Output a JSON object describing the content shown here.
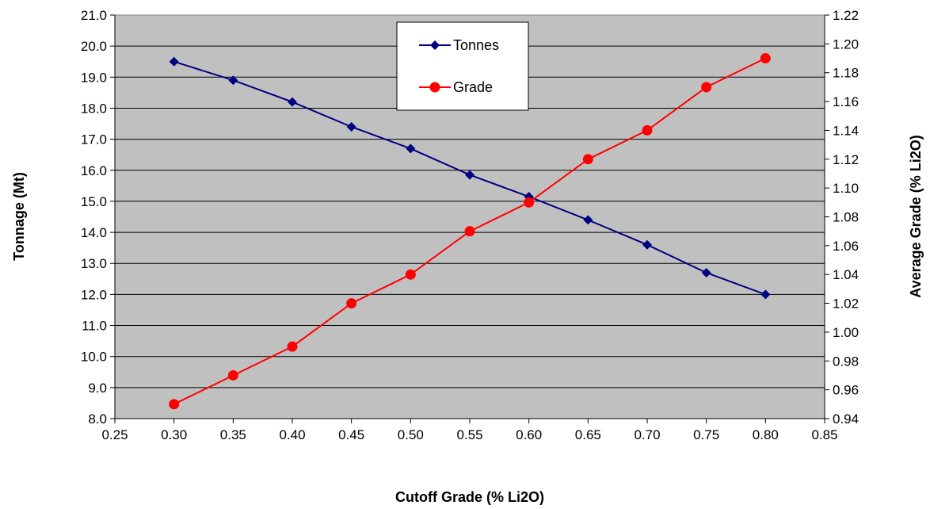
{
  "chart_data": {
    "type": "line",
    "title": "",
    "xlabel": "Cutoff Grade (% Li2O)",
    "ylabel": "Tonnage (Mt)",
    "y2label": "Average Grade (% Li2O)",
    "xlim": [
      0.25,
      0.85
    ],
    "ylim": [
      8.0,
      21.0
    ],
    "y2lim": [
      0.94,
      1.22
    ],
    "x_ticks": [
      "0.25",
      "0.30",
      "0.35",
      "0.40",
      "0.45",
      "0.50",
      "0.55",
      "0.60",
      "0.65",
      "0.70",
      "0.75",
      "0.80",
      "0.85"
    ],
    "y_ticks": [
      "8.0",
      "9.0",
      "10.0",
      "11.0",
      "12.0",
      "13.0",
      "14.0",
      "15.0",
      "16.0",
      "17.0",
      "18.0",
      "19.0",
      "20.0",
      "21.0"
    ],
    "y2_ticks": [
      "0.94",
      "0.96",
      "0.98",
      "1.00",
      "1.02",
      "1.04",
      "1.06",
      "1.08",
      "1.10",
      "1.12",
      "1.14",
      "1.16",
      "1.18",
      "1.20",
      "1.22"
    ],
    "grid": true,
    "plot_background": "#c0c0c0",
    "legend_position": "top-center",
    "x": [
      0.3,
      0.35,
      0.4,
      0.45,
      0.5,
      0.55,
      0.6,
      0.65,
      0.7,
      0.75,
      0.8
    ],
    "series": [
      {
        "name": "Tonnes",
        "axis": "left",
        "color": "#000080",
        "marker": "diamond",
        "values": [
          19.5,
          18.9,
          18.2,
          17.4,
          16.7,
          15.85,
          15.15,
          14.4,
          13.6,
          12.7,
          12.0
        ]
      },
      {
        "name": "Grade",
        "axis": "right",
        "color": "#ff0000",
        "marker": "circle",
        "values": [
          0.95,
          0.97,
          0.99,
          1.02,
          1.04,
          1.07,
          1.09,
          1.12,
          1.14,
          1.17,
          1.19
        ]
      }
    ]
  }
}
